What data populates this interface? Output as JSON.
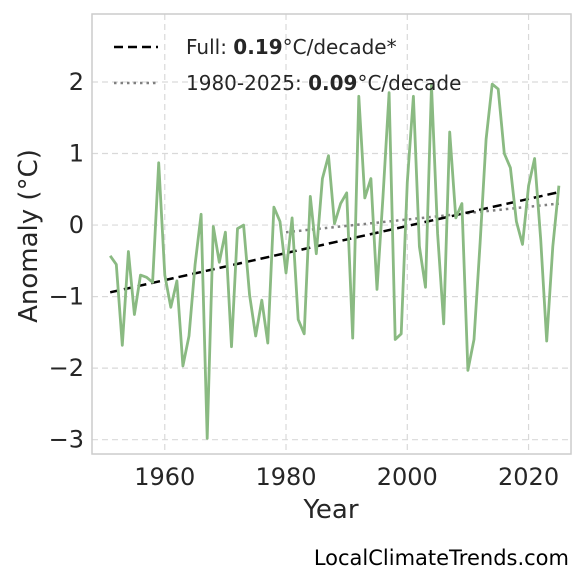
{
  "chart_data": {
    "type": "line",
    "xlabel": "Year",
    "ylabel": "Anomaly (°C)",
    "xlim": [
      1948,
      2027
    ],
    "ylim": [
      -3.2,
      2.95
    ],
    "xticks": [
      1960,
      1980,
      2000,
      2020
    ],
    "yticks": [
      -3,
      -2,
      -1,
      0,
      1,
      2
    ],
    "ytick_labels": [
      "−3",
      "−2",
      "−1",
      "0",
      "1",
      "2"
    ],
    "grid": true,
    "legend_position": "top-left",
    "colors": {
      "series": "#8aba82",
      "full_trend": "#000000",
      "recent_trend": "#808080",
      "grid": "#d9d9d9",
      "frame": "#cccccc"
    },
    "series": [
      {
        "x": [
          1951,
          1952,
          1953,
          1954,
          1955,
          1956,
          1957,
          1958,
          1959,
          1960,
          1961,
          1962,
          1963,
          1964,
          1965,
          1966,
          1967,
          1968,
          1969,
          1970,
          1971,
          1972,
          1973,
          1974,
          1975,
          1976,
          1977,
          1978,
          1979,
          1980,
          1981,
          1982,
          1983,
          1984,
          1985,
          1986,
          1987,
          1988,
          1989,
          1990,
          1991,
          1992,
          1993,
          1994,
          1995,
          1996,
          1997,
          1998,
          1999,
          2000,
          2001,
          2002,
          2003,
          2004,
          2005,
          2006,
          2007,
          2008,
          2009,
          2010,
          2011,
          2012,
          2013,
          2014,
          2015,
          2016,
          2017,
          2018,
          2019,
          2020,
          2021,
          2022,
          2023,
          2024,
          2025
        ],
        "values": [
          -0.43,
          -0.55,
          -1.68,
          -0.37,
          -1.25,
          -0.7,
          -0.73,
          -0.8,
          0.87,
          -0.7,
          -1.15,
          -0.78,
          -1.97,
          -1.55,
          -0.55,
          0.15,
          -2.98,
          -0.02,
          -0.52,
          -0.1,
          -1.7,
          -0.05,
          0.0,
          -0.98,
          -1.55,
          -1.05,
          -1.65,
          0.25,
          0.05,
          -0.67,
          0.1,
          -1.32,
          -1.52,
          0.4,
          -0.4,
          0.65,
          0.97,
          0.02,
          0.3,
          0.45,
          -1.58,
          1.8,
          0.38,
          0.65,
          -0.9,
          0.4,
          1.85,
          -1.6,
          -1.52,
          0.6,
          1.8,
          -0.3,
          -0.87,
          1.95,
          -0.12,
          -1.38,
          1.3,
          0.1,
          0.3,
          -2.03,
          -1.6,
          -0.25,
          1.2,
          1.97,
          1.9,
          1.0,
          0.8,
          0.05,
          -0.27,
          0.55,
          0.93,
          -0.2,
          -1.62,
          -0.3,
          0.55
        ]
      }
    ],
    "trends": [
      {
        "label": "full",
        "x": [
          1951,
          2025
        ],
        "values": [
          -0.94,
          0.46
        ]
      },
      {
        "label": "recent",
        "x": [
          1980,
          2025
        ],
        "values": [
          -0.1,
          0.3
        ]
      }
    ]
  },
  "legend": {
    "full": {
      "prefix": "Full: ",
      "value": "0.19",
      "suffix": "°C/decade*"
    },
    "recent": {
      "prefix": "1980-2025: ",
      "value": "0.09",
      "suffix": "°C/decade"
    }
  },
  "watermark": "LocalClimateTrends.com"
}
